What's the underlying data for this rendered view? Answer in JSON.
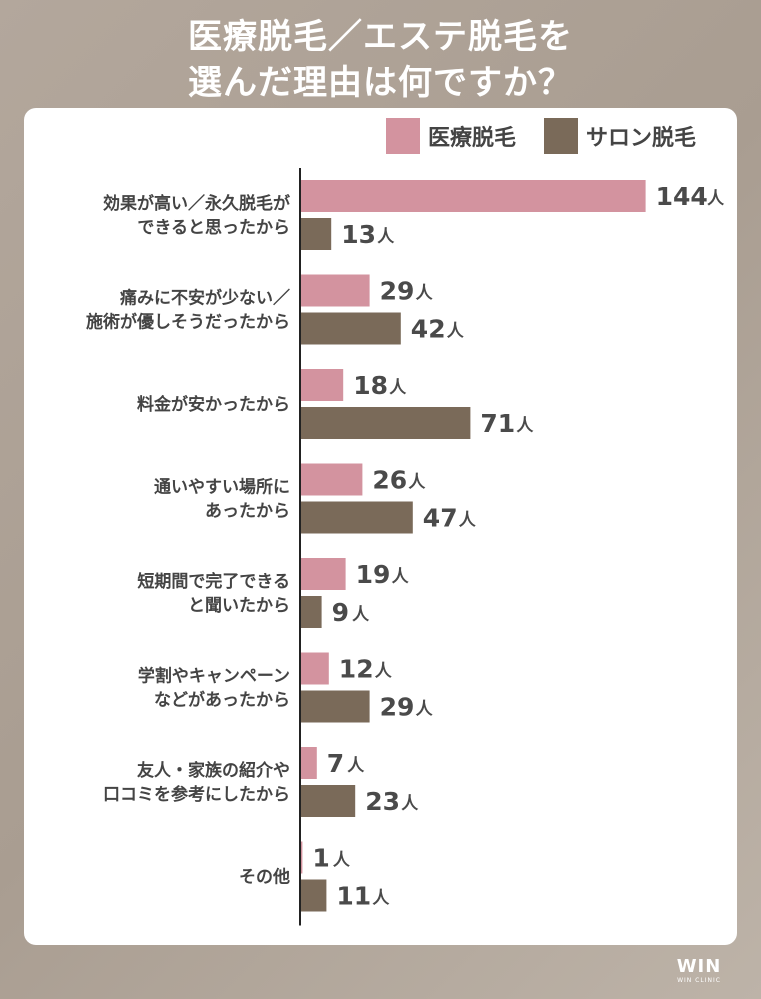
{
  "title": {
    "line1": "医療脱毛／エステ脱毛を",
    "line2": "選んだ理由は何ですか？"
  },
  "colors": {
    "salon": "#7a6a59",
    "clinic": "#d3939f"
  },
  "chart_data": {
    "type": "bar",
    "orientation": "horizontal",
    "categories": [
      [
        "効果が高い／永久脱毛が",
        "できると思ったから"
      ],
      [
        "痛みに不安が少ない／",
        "施術が優しそうだったから"
      ],
      [
        "料金が安かったから"
      ],
      [
        "通いやすい場所に",
        "あったから"
      ],
      [
        "短期間で完了できる",
        "と聞いたから"
      ],
      [
        "学割やキャンペーン",
        "などがあったから"
      ],
      [
        "友人・家族の紹介や",
        "口コミを参考にしたから"
      ],
      [
        "その他"
      ]
    ],
    "series": [
      {
        "name": "医療脱毛",
        "color": "#d3939f",
        "values": [
          144,
          29,
          18,
          26,
          19,
          12,
          7,
          1
        ]
      },
      {
        "name": "サロン脱毛",
        "color": "#7a6a59",
        "values": [
          13,
          42,
          71,
          47,
          9,
          29,
          23,
          11
        ]
      }
    ],
    "unit": "人",
    "legend_position": "top-right"
  },
  "logo": {
    "mark": "WIN",
    "sub": "WIN CLINIC"
  }
}
